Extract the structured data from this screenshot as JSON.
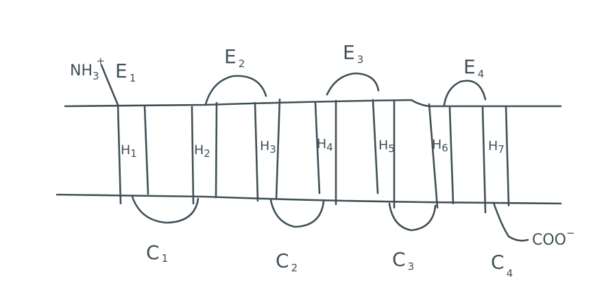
{
  "termini": {
    "n_terminus": "NH",
    "n_terminus_subscript": "3",
    "n_terminus_charge": "+",
    "c_terminus": "COO",
    "c_terminus_charge": "−"
  },
  "extracellular_loops": [
    "E",
    "E",
    "E",
    "E"
  ],
  "extracellular_loop_numbers": [
    "1",
    "2",
    "3",
    "4"
  ],
  "cytoplasmic_loops": [
    "C",
    "C",
    "C",
    "C"
  ],
  "cytoplasmic_loop_numbers": [
    "1",
    "2",
    "3",
    "4"
  ],
  "helices": [
    "H",
    "H",
    "H",
    "H",
    "H",
    "H",
    "H"
  ],
  "helix_numbers": [
    "1",
    "2",
    "3",
    "4",
    "5",
    "6",
    "7"
  ]
}
